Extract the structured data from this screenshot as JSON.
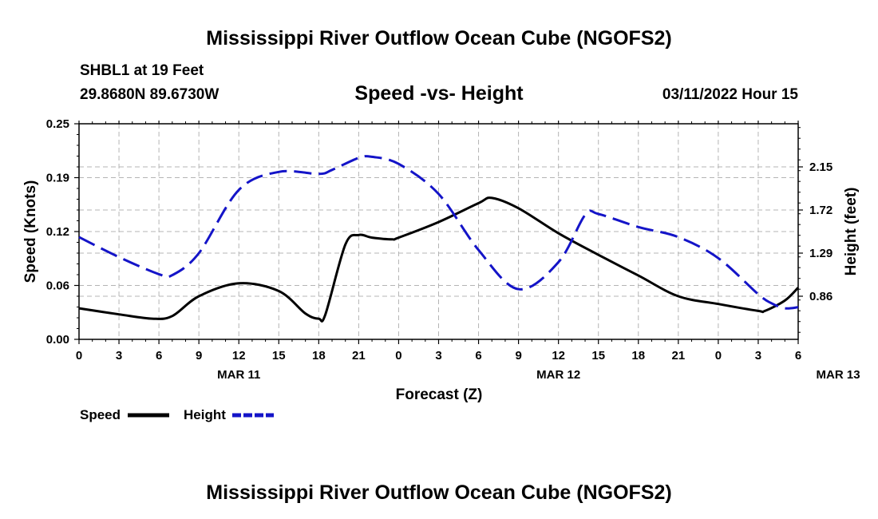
{
  "header": {
    "title": "Mississippi River Outflow Ocean Cube (NGOFS2)",
    "station": "SHBL1 at 19 Feet",
    "position": "29.8680N  89.6730W",
    "center_title": "Speed -vs- Height",
    "datetime": "03/11/2022 Hour 15"
  },
  "footer": {
    "title": "Mississippi River Outflow Ocean Cube (NGOFS2)"
  },
  "legend": {
    "speed_label": "Speed",
    "height_label": "Height"
  },
  "colors": {
    "speed": "#000000",
    "height": "#1414c8",
    "grid": "#b4b4b4"
  },
  "chart_data": {
    "type": "line",
    "title": "Speed -vs- Height",
    "xlabel": "Forecast (Z)",
    "ylabel": "Speed (Knots)",
    "y2label": "Height (feet)",
    "x_ticks": [
      "0",
      "3",
      "6",
      "9",
      "12",
      "15",
      "18",
      "21",
      "0",
      "3",
      "6",
      "9",
      "12",
      "15",
      "18",
      "21",
      "0",
      "3",
      "6"
    ],
    "x_day_labels": [
      {
        "label": "MAR 11",
        "hour": 12
      },
      {
        "label": "MAR 12",
        "hour": 36
      },
      {
        "label": "MAR 13",
        "hour": 57
      }
    ],
    "xlim": [
      0,
      54
    ],
    "ylim": [
      0,
      0.25
    ],
    "y_ticks": [
      "0.00",
      "0.06",
      "0.12",
      "0.19",
      "0.25"
    ],
    "y2lim": [
      0.43,
      2.58
    ],
    "y2_ticks": [
      "0.86",
      "1.29",
      "1.72",
      "2.15"
    ],
    "series": [
      {
        "name": "Speed",
        "axis": "left",
        "style": "solid",
        "x": [
          0,
          3,
          5.5,
          7,
          9,
          12,
          15,
          17,
          18,
          18.5,
          20,
          21,
          22,
          23.5,
          24,
          27,
          30,
          31,
          33,
          36,
          39,
          42,
          45,
          48,
          51,
          51.5,
          53,
          54
        ],
        "y": [
          0.036,
          0.029,
          0.024,
          0.027,
          0.05,
          0.065,
          0.056,
          0.03,
          0.024,
          0.029,
          0.11,
          0.121,
          0.118,
          0.116,
          0.118,
          0.136,
          0.158,
          0.164,
          0.152,
          0.123,
          0.098,
          0.074,
          0.05,
          0.041,
          0.033,
          0.033,
          0.045,
          0.06
        ]
      },
      {
        "name": "Height",
        "axis": "right",
        "style": "dashed",
        "x": [
          0,
          3,
          6,
          7,
          9,
          12,
          15,
          18,
          19,
          21,
          22,
          24,
          27,
          30,
          33,
          36,
          38,
          39,
          42,
          45,
          48,
          51,
          52,
          53,
          54
        ],
        "y": [
          1.45,
          1.25,
          1.08,
          1.07,
          1.29,
          1.92,
          2.1,
          2.08,
          2.12,
          2.24,
          2.25,
          2.18,
          1.88,
          1.32,
          0.93,
          1.2,
          1.67,
          1.68,
          1.55,
          1.45,
          1.24,
          0.88,
          0.79,
          0.74,
          0.75
        ]
      }
    ]
  }
}
